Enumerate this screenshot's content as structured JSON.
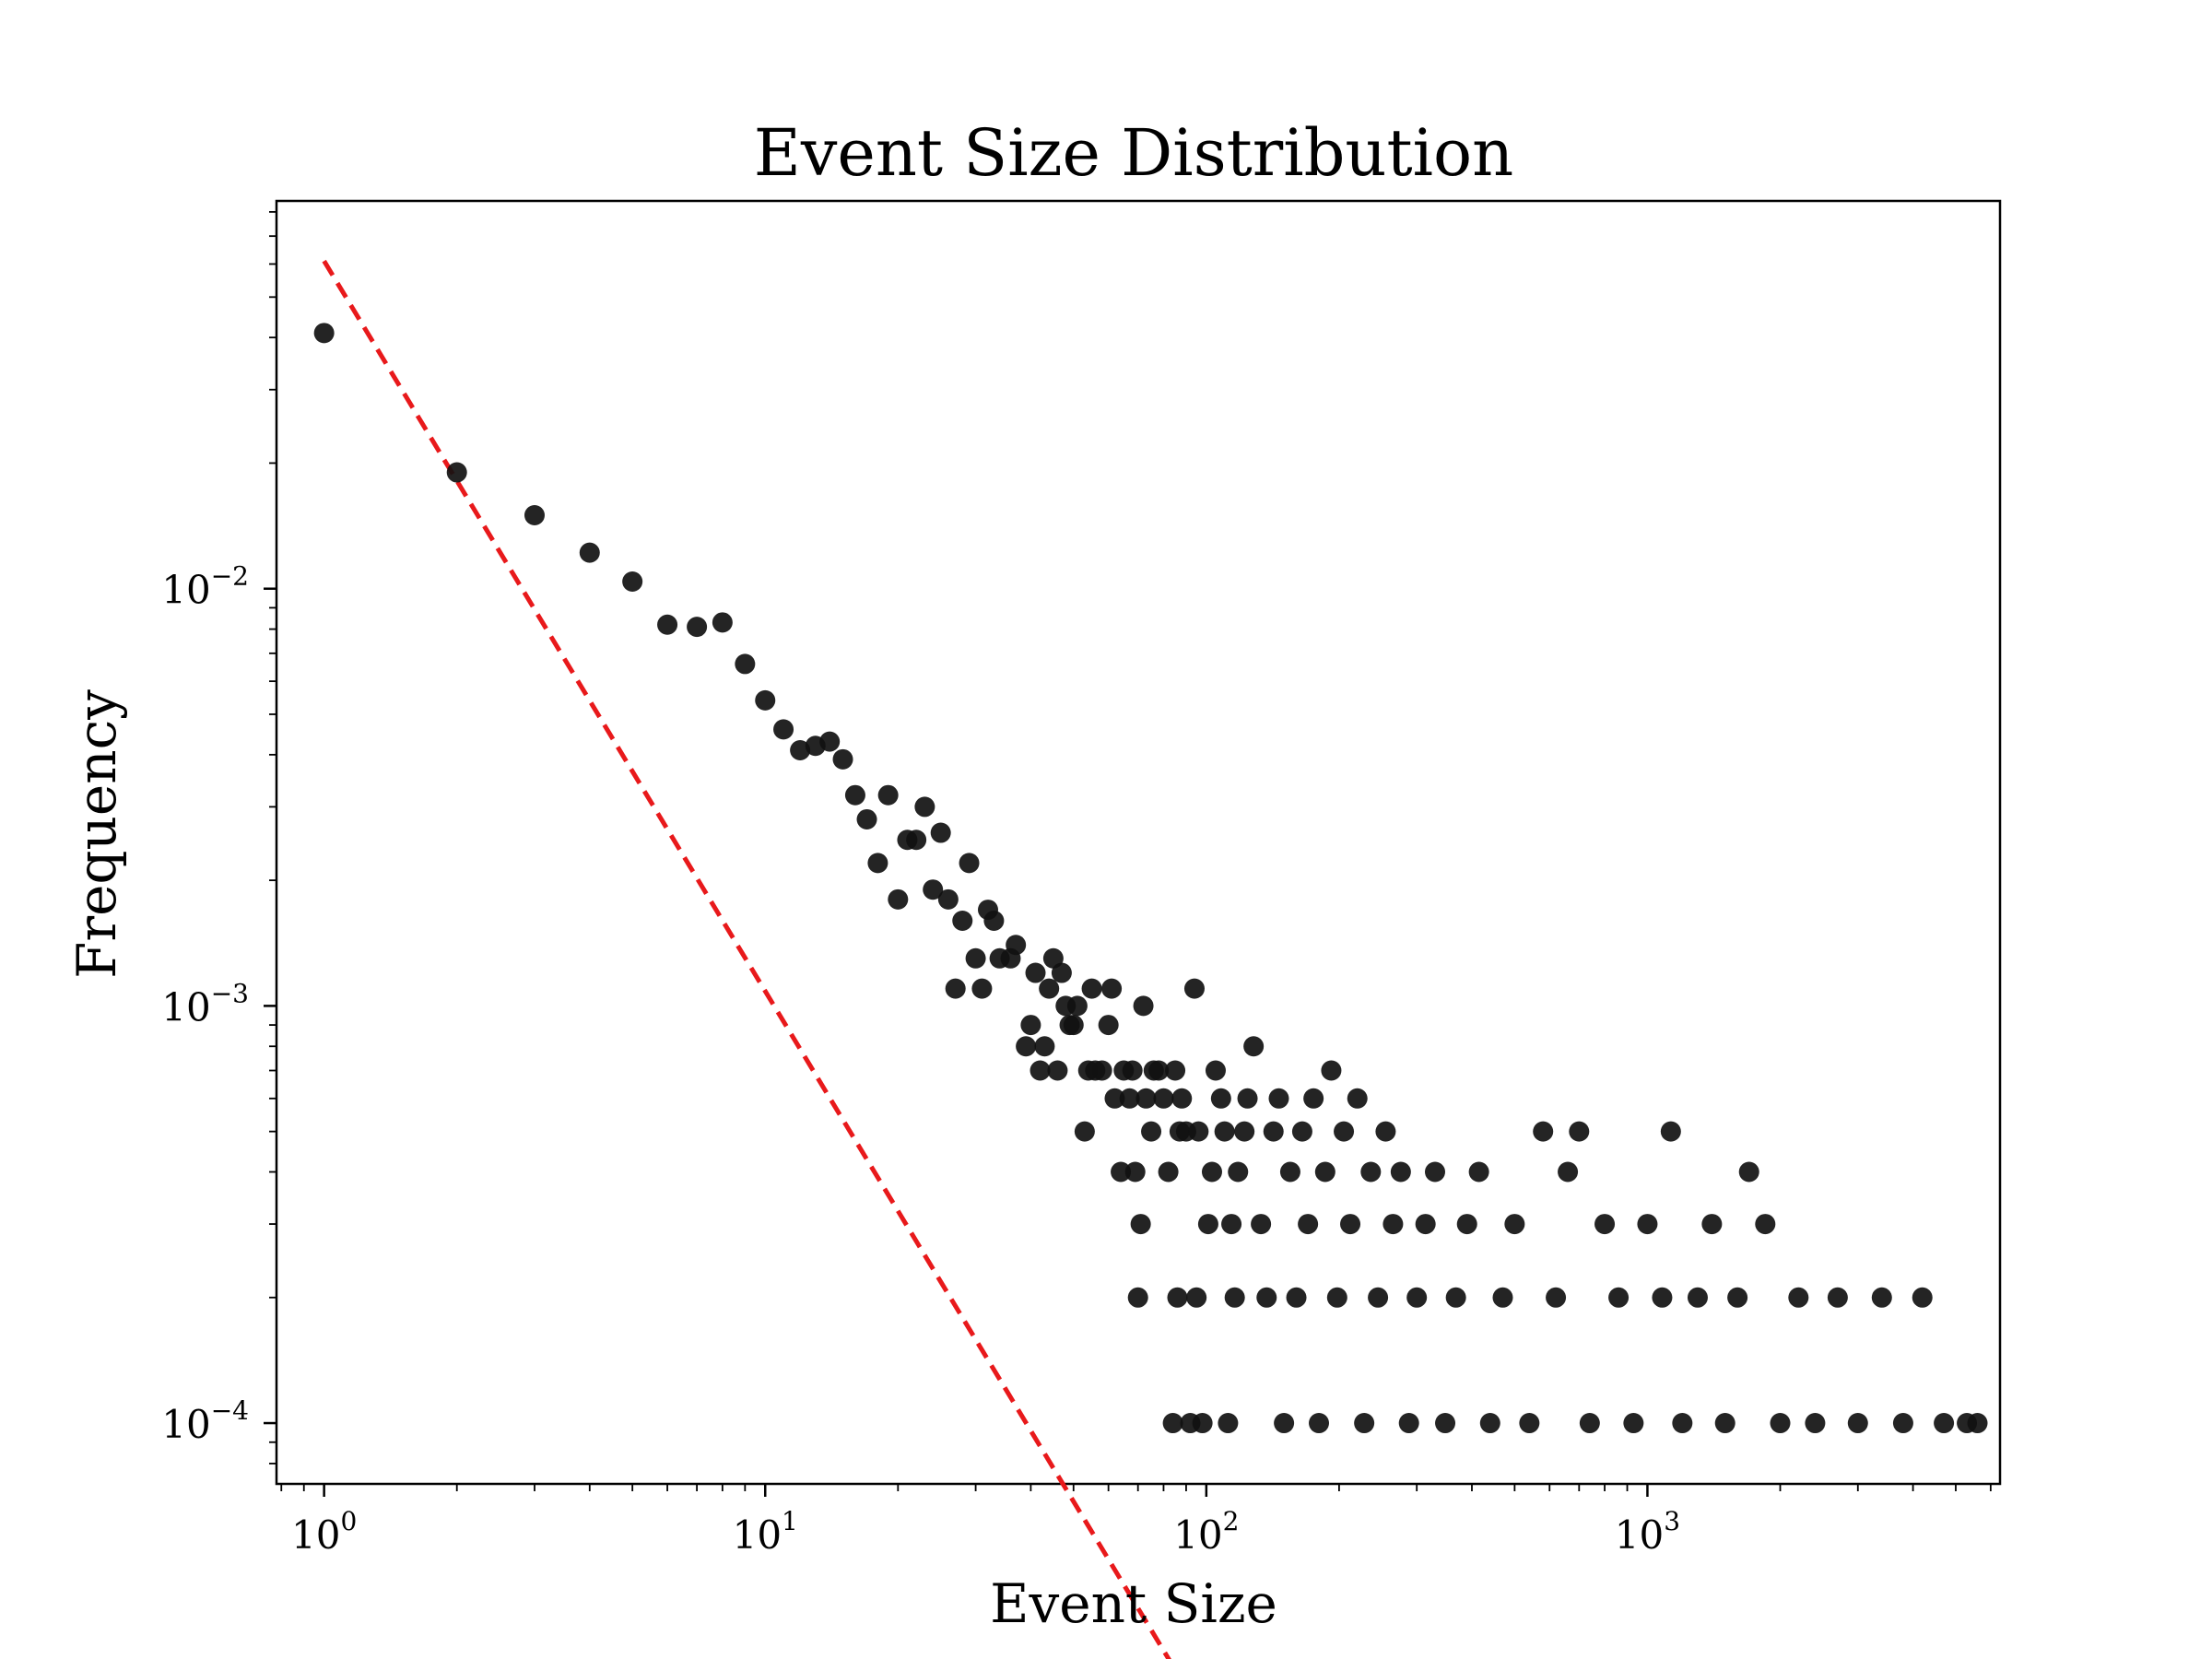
{
  "chart_data": {
    "type": "scatter",
    "title": "Event Size Distribution",
    "xlabel": "Event Size",
    "ylabel": "Frequency",
    "xscale": "log",
    "yscale": "log",
    "xlim": [
      0.78,
      6300
    ],
    "ylim": [
      7.15e-05,
      0.085
    ],
    "x_ticks": [
      {
        "base": "10",
        "exp": "0",
        "value": 1
      },
      {
        "base": "10",
        "exp": "1",
        "value": 10
      },
      {
        "base": "10",
        "exp": "2",
        "value": 100
      },
      {
        "base": "10",
        "exp": "3",
        "value": 1000
      }
    ],
    "y_ticks": [
      {
        "base": "10",
        "exp": "−4",
        "value": 0.0001
      },
      {
        "base": "10",
        "exp": "−3",
        "value": 0.001
      },
      {
        "base": "10",
        "exp": "−2",
        "value": 0.01
      }
    ],
    "colors": {
      "points": "#111111",
      "fit_line": "#e8191b",
      "axes": "#000000"
    },
    "fit_line": {
      "style": "dashed",
      "x_range": [
        1,
        95
      ],
      "y_at_x1": 0.061,
      "slope": -1.75
    },
    "points": [
      [
        1,
        0.041
      ],
      [
        2,
        0.019
      ],
      [
        3,
        0.015
      ],
      [
        4,
        0.0122
      ],
      [
        5,
        0.0104
      ],
      [
        6,
        0.0082
      ],
      [
        7,
        0.0081
      ],
      [
        8,
        0.0083
      ],
      [
        9,
        0.0066
      ],
      [
        10,
        0.0054
      ],
      [
        11,
        0.0046
      ],
      [
        12,
        0.0041
      ],
      [
        13,
        0.0042
      ],
      [
        14,
        0.0043
      ],
      [
        15,
        0.0039
      ],
      [
        16,
        0.0032
      ],
      [
        17,
        0.0028
      ],
      [
        18,
        0.0022
      ],
      [
        19,
        0.0032
      ],
      [
        20,
        0.0018
      ],
      [
        21,
        0.0025
      ],
      [
        22,
        0.0025
      ],
      [
        23,
        0.003
      ],
      [
        24,
        0.0019
      ],
      [
        25,
        0.0026
      ],
      [
        26,
        0.0018
      ],
      [
        27,
        0.0011
      ],
      [
        28,
        0.0016
      ],
      [
        29,
        0.0022
      ],
      [
        30,
        0.0013
      ],
      [
        31,
        0.0011
      ],
      [
        32,
        0.0017
      ],
      [
        33,
        0.0016
      ],
      [
        34,
        0.0013
      ],
      [
        36,
        0.0013
      ],
      [
        37,
        0.0014
      ],
      [
        39,
        0.0008
      ],
      [
        40,
        0.0009
      ],
      [
        41,
        0.0012
      ],
      [
        42,
        0.0007
      ],
      [
        43,
        0.0008
      ],
      [
        44,
        0.0011
      ],
      [
        45,
        0.0013
      ],
      [
        46,
        0.0007
      ],
      [
        47,
        0.0012
      ],
      [
        48,
        0.001
      ],
      [
        49,
        0.0009
      ],
      [
        50,
        0.0009
      ],
      [
        51,
        0.001
      ],
      [
        53,
        0.0005
      ],
      [
        54,
        0.0007
      ],
      [
        55,
        0.0011
      ],
      [
        56,
        0.0007
      ],
      [
        58,
        0.0007
      ],
      [
        60,
        0.0009
      ],
      [
        61,
        0.0011
      ],
      [
        62,
        0.0006
      ],
      [
        64,
        0.0004
      ],
      [
        65,
        0.0007
      ],
      [
        67,
        0.0006
      ],
      [
        68,
        0.0007
      ],
      [
        69,
        0.0004
      ],
      [
        70,
        0.0002
      ],
      [
        71,
        0.0003
      ],
      [
        72,
        0.001
      ],
      [
        73,
        0.0006
      ],
      [
        75,
        0.0005
      ],
      [
        76,
        0.0007
      ],
      [
        78,
        0.0007
      ],
      [
        80,
        0.0006
      ],
      [
        82,
        0.0004
      ],
      [
        84,
        0.0001
      ],
      [
        85,
        0.0007
      ],
      [
        86,
        0.0002
      ],
      [
        87,
        0.0005
      ],
      [
        88,
        0.0006
      ],
      [
        90,
        0.0005
      ],
      [
        92,
        0.0001
      ],
      [
        94,
        0.0011
      ],
      [
        95,
        0.0002
      ],
      [
        96,
        0.0005
      ],
      [
        98,
        0.0001
      ],
      [
        101,
        0.0003
      ],
      [
        103,
        0.0004
      ],
      [
        105,
        0.0007
      ],
      [
        108,
        0.0006
      ],
      [
        110,
        0.0005
      ],
      [
        112,
        0.0001
      ],
      [
        114,
        0.0003
      ],
      [
        116,
        0.0002
      ],
      [
        118,
        0.0004
      ],
      [
        122,
        0.0005
      ],
      [
        124,
        0.0006
      ],
      [
        128,
        0.0008
      ],
      [
        133,
        0.0003
      ],
      [
        137,
        0.0002
      ],
      [
        142,
        0.0005
      ],
      [
        146,
        0.0006
      ],
      [
        150,
        0.0001
      ],
      [
        155,
        0.0004
      ],
      [
        160,
        0.0002
      ],
      [
        165,
        0.0005
      ],
      [
        170,
        0.0003
      ],
      [
        175,
        0.0006
      ],
      [
        180,
        0.0001
      ],
      [
        186,
        0.0004
      ],
      [
        192,
        0.0007
      ],
      [
        198,
        0.0002
      ],
      [
        205,
        0.0005
      ],
      [
        212,
        0.0003
      ],
      [
        220,
        0.0006
      ],
      [
        228,
        0.0001
      ],
      [
        236,
        0.0004
      ],
      [
        245,
        0.0002
      ],
      [
        255,
        0.0005
      ],
      [
        265,
        0.0003
      ],
      [
        276,
        0.0004
      ],
      [
        288,
        0.0001
      ],
      [
        300,
        0.0002
      ],
      [
        314,
        0.0003
      ],
      [
        330,
        0.0004
      ],
      [
        348,
        0.0001
      ],
      [
        368,
        0.0002
      ],
      [
        390,
        0.0003
      ],
      [
        415,
        0.0004
      ],
      [
        440,
        0.0001
      ],
      [
        470,
        0.0002
      ],
      [
        500,
        0.0003
      ],
      [
        540,
        0.0001
      ],
      [
        580,
        0.0005
      ],
      [
        620,
        0.0002
      ],
      [
        660,
        0.0004
      ],
      [
        700,
        0.0005
      ],
      [
        740,
        0.0001
      ],
      [
        800,
        0.0003
      ],
      [
        860,
        0.0002
      ],
      [
        930,
        0.0001
      ],
      [
        1000,
        0.0003
      ],
      [
        1080,
        0.0002
      ],
      [
        1130,
        0.0005
      ],
      [
        1200,
        0.0001
      ],
      [
        1300,
        0.0002
      ],
      [
        1400,
        0.0003
      ],
      [
        1500,
        0.0001
      ],
      [
        1600,
        0.0002
      ],
      [
        1700,
        0.0004
      ],
      [
        1850,
        0.0003
      ],
      [
        2000,
        0.0001
      ],
      [
        2200,
        0.0002
      ],
      [
        2400,
        0.0001
      ],
      [
        2700,
        0.0002
      ],
      [
        3000,
        0.0001
      ],
      [
        3400,
        0.0002
      ],
      [
        3800,
        0.0001
      ],
      [
        4200,
        0.0002
      ],
      [
        4700,
        0.0001
      ],
      [
        5300,
        0.0001
      ],
      [
        5600,
        0.0001
      ]
    ]
  }
}
